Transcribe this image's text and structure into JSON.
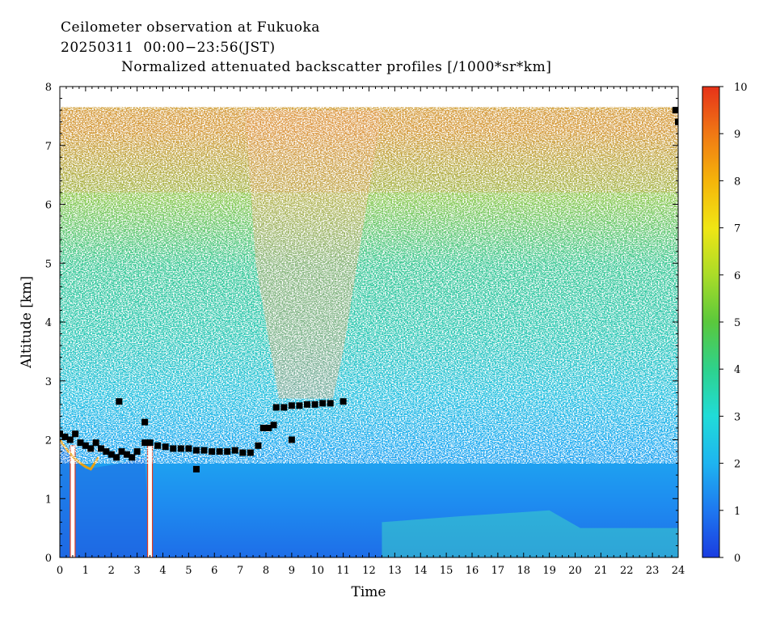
{
  "chart_data": {
    "type": "heatmap",
    "title_line1": "Ceilometer observation at Fukuoka",
    "title_line2": "20250311  00:00−23:56(JST)",
    "title_line3": "Normalized attenuated backscatter profiles [/1000*sr*km]",
    "xlabel": "Time",
    "ylabel": "Altitude [km]",
    "xlim": [
      0,
      24
    ],
    "ylim": [
      0,
      8
    ],
    "x_ticks": [
      "0",
      "1",
      "2",
      "3",
      "4",
      "5",
      "6",
      "7",
      "8",
      "9",
      "10",
      "11",
      "12",
      "13",
      "14",
      "15",
      "16",
      "17",
      "18",
      "19",
      "20",
      "21",
      "22",
      "23",
      "24"
    ],
    "y_ticks": [
      "0",
      "1",
      "2",
      "3",
      "4",
      "5",
      "6",
      "7",
      "8"
    ],
    "colorbar": {
      "range": [
        0,
        10
      ],
      "ticks": [
        "0",
        "1",
        "2",
        "3",
        "4",
        "5",
        "6",
        "7",
        "8",
        "9",
        "10"
      ],
      "colors": [
        "#1a3ce0",
        "#1e78f0",
        "#1eb4f0",
        "#20dcd8",
        "#2ed28c",
        "#5ac83c",
        "#aadc28",
        "#f0e614",
        "#f5b40a",
        "#f07814",
        "#e63219"
      ]
    },
    "data_ceiling_km": 7.65,
    "cloud_base_points": [
      [
        0.0,
        2.1
      ],
      [
        0.2,
        2.05
      ],
      [
        0.4,
        2.0
      ],
      [
        0.6,
        2.1
      ],
      [
        0.8,
        1.95
      ],
      [
        1.0,
        1.9
      ],
      [
        1.2,
        1.85
      ],
      [
        1.4,
        1.95
      ],
      [
        1.6,
        1.85
      ],
      [
        1.8,
        1.8
      ],
      [
        2.0,
        1.75
      ],
      [
        2.2,
        1.7
      ],
      [
        2.4,
        1.8
      ],
      [
        2.6,
        1.75
      ],
      [
        2.8,
        1.7
      ],
      [
        3.0,
        1.8
      ],
      [
        3.3,
        1.95
      ],
      [
        3.5,
        1.95
      ],
      [
        3.8,
        1.9
      ],
      [
        4.1,
        1.88
      ],
      [
        4.4,
        1.85
      ],
      [
        4.7,
        1.85
      ],
      [
        5.0,
        1.85
      ],
      [
        5.3,
        1.82
      ],
      [
        5.6,
        1.82
      ],
      [
        5.9,
        1.8
      ],
      [
        6.2,
        1.8
      ],
      [
        6.5,
        1.8
      ],
      [
        6.8,
        1.82
      ],
      [
        7.1,
        1.78
      ],
      [
        7.4,
        1.78
      ],
      [
        7.7,
        1.9
      ],
      [
        7.9,
        2.2
      ],
      [
        8.1,
        2.2
      ],
      [
        8.3,
        2.25
      ],
      [
        8.4,
        2.55
      ],
      [
        8.7,
        2.55
      ],
      [
        9.0,
        2.58
      ],
      [
        9.3,
        2.58
      ],
      [
        9.6,
        2.6
      ],
      [
        9.9,
        2.6
      ],
      [
        10.2,
        2.62
      ],
      [
        10.5,
        2.62
      ],
      [
        11.0,
        2.65
      ],
      [
        2.3,
        2.65
      ],
      [
        3.3,
        2.3
      ],
      [
        5.3,
        1.5
      ],
      [
        9.0,
        2.0
      ],
      [
        23.9,
        7.6
      ],
      [
        24.0,
        7.4
      ]
    ]
  }
}
